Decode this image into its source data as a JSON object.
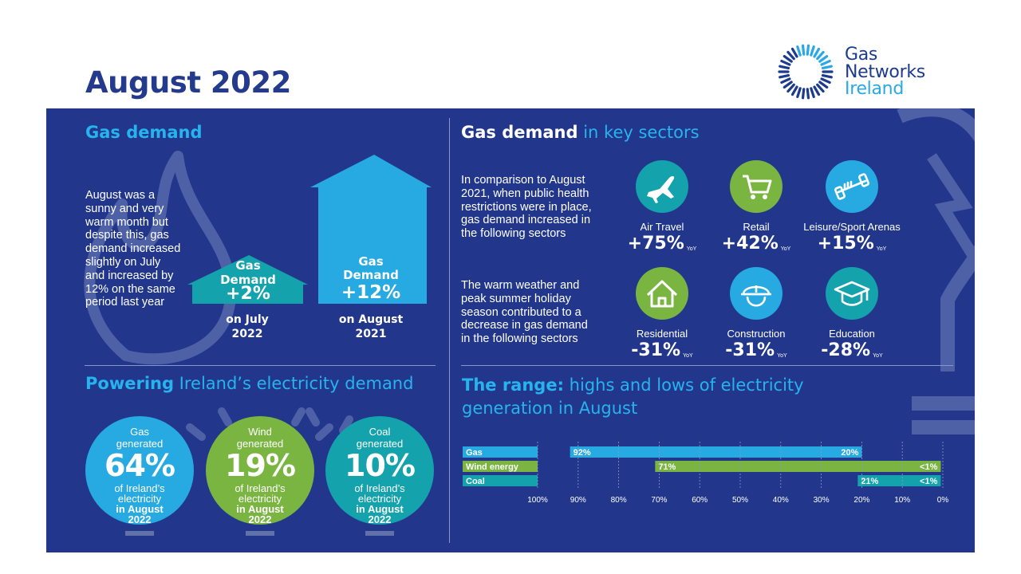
{
  "title": "August 2022",
  "logo": {
    "line1": "Gas",
    "line2": "Networks",
    "line3": "Ireland"
  },
  "gas_demand": {
    "heading": "Gas demand",
    "text": "August was a sunny and very warm month but despite this, gas demand increased slightly on July and increased by 12% on the same period last year",
    "small_house": {
      "label": "Gas Demand",
      "value": "+2%",
      "caption": "on July 2022"
    },
    "big_house": {
      "label": "Gas Demand",
      "value": "+12%",
      "caption": "on August 2021"
    }
  },
  "sectors": {
    "heading_bold": "Gas demand",
    "heading_rest": " in key sectors",
    "increase_text": "In comparison to August 2021, when public health restrictions were in place, gas demand increased in the following sectors",
    "decrease_text": "The warm weather and peak summer holiday season contributed to a decrease in gas demand in the following sectors",
    "yoy": "YoY",
    "items": [
      {
        "label": "Air Travel",
        "value": "+75%",
        "icon": "airplane-icon",
        "color": "#14a2ad"
      },
      {
        "label": "Retail",
        "value": "+42%",
        "icon": "shopping-cart-icon",
        "color": "#7ab541"
      },
      {
        "label": "Leisure/Sport Arenas",
        "value": "+15%",
        "icon": "dumbbell-icon",
        "color": "#27a9e1"
      },
      {
        "label": "Residential",
        "value": "-31%",
        "icon": "house-icon",
        "color": "#7ab541"
      },
      {
        "label": "Construction",
        "value": "-31%",
        "icon": "hard-hat-icon",
        "color": "#27a9e1"
      },
      {
        "label": "Education",
        "value": "-28%",
        "icon": "graduation-cap-icon",
        "color": "#14a2ad"
      }
    ]
  },
  "powering": {
    "heading_bold": "Powering",
    "heading_rest": " Ireland’s electricity demand",
    "circles": [
      {
        "label": "Gas generated",
        "value": "64%",
        "of": "of Ireland’s electricity",
        "when": "in August 2022",
        "color": "#27a9e1"
      },
      {
        "label": "Wind generated",
        "value": "19%",
        "of": "of Ireland’s electricity",
        "when": "in August 2022",
        "color": "#7ab541"
      },
      {
        "label": "Coal generated",
        "value": "10%",
        "of": "of Ireland’s electricity",
        "when": "in August 2022",
        "color": "#14a2ad"
      }
    ]
  },
  "range": {
    "heading_bold": "The range:",
    "heading_line1": " highs and lows of electricity",
    "heading_line2": "generation in August"
  },
  "chart_data": {
    "type": "bar",
    "orientation": "horizontal-range",
    "x_reversed": true,
    "xlim": [
      100,
      0
    ],
    "ticks": [
      "100%",
      "90%",
      "80%",
      "70%",
      "60%",
      "50%",
      "40%",
      "30%",
      "20%",
      "10%",
      "0%"
    ],
    "series": [
      {
        "name": "Gas",
        "high": 92,
        "low": 20,
        "high_label": "92%",
        "low_label": "20%",
        "color": "#27a9e1"
      },
      {
        "name": "Wind energy",
        "high": 71,
        "low": 0.5,
        "high_label": "71%",
        "low_label": "<1%",
        "color": "#7ab541"
      },
      {
        "name": "Coal",
        "high": 21,
        "low": 0.5,
        "high_label": "21%",
        "low_label": "<1%",
        "color": "#14a2ad"
      }
    ]
  },
  "colors": {
    "panel": "#22378b",
    "title": "#243a8c",
    "accent_blue": "#27b4ee",
    "green": "#7ab541",
    "teal": "#14a2ad"
  }
}
